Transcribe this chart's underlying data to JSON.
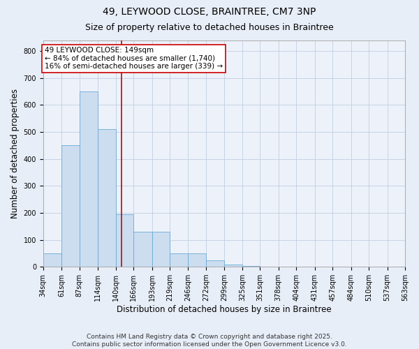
{
  "title": "49, LEYWOOD CLOSE, BRAINTREE, CM7 3NP",
  "subtitle": "Size of property relative to detached houses in Braintree",
  "xlabel": "Distribution of detached houses by size in Braintree",
  "ylabel": "Number of detached properties",
  "bin_edges": [
    34,
    61,
    87,
    114,
    140,
    166,
    193,
    219,
    246,
    272,
    299,
    325,
    351,
    378,
    404,
    431,
    457,
    484,
    510,
    537,
    563
  ],
  "bar_heights": [
    50,
    450,
    650,
    510,
    195,
    130,
    130,
    50,
    50,
    25,
    8,
    2,
    0,
    0,
    0,
    0,
    0,
    0,
    0,
    0
  ],
  "bar_color": "#ccddf0",
  "bar_edge_color": "#6aaad4",
  "ref_line_x": 149,
  "ref_line_color": "#cc0000",
  "annotation_text": "49 LEYWOOD CLOSE: 149sqm\n← 84% of detached houses are smaller (1,740)\n16% of semi-detached houses are larger (339) →",
  "annotation_box_color": "#ffffff",
  "annotation_box_edge": "#cc0000",
  "ylim": [
    0,
    840
  ],
  "yticks": [
    0,
    100,
    200,
    300,
    400,
    500,
    600,
    700,
    800
  ],
  "footer": "Contains HM Land Registry data © Crown copyright and database right 2025.\nContains public sector information licensed under the Open Government Licence v3.0.",
  "bg_color": "#e8eef8",
  "plot_bg_color": "#edf2fa",
  "title_fontsize": 10,
  "subtitle_fontsize": 9,
  "tick_label_fontsize": 7,
  "axis_label_fontsize": 8.5,
  "footer_fontsize": 6.5,
  "annot_fontsize": 7.5
}
